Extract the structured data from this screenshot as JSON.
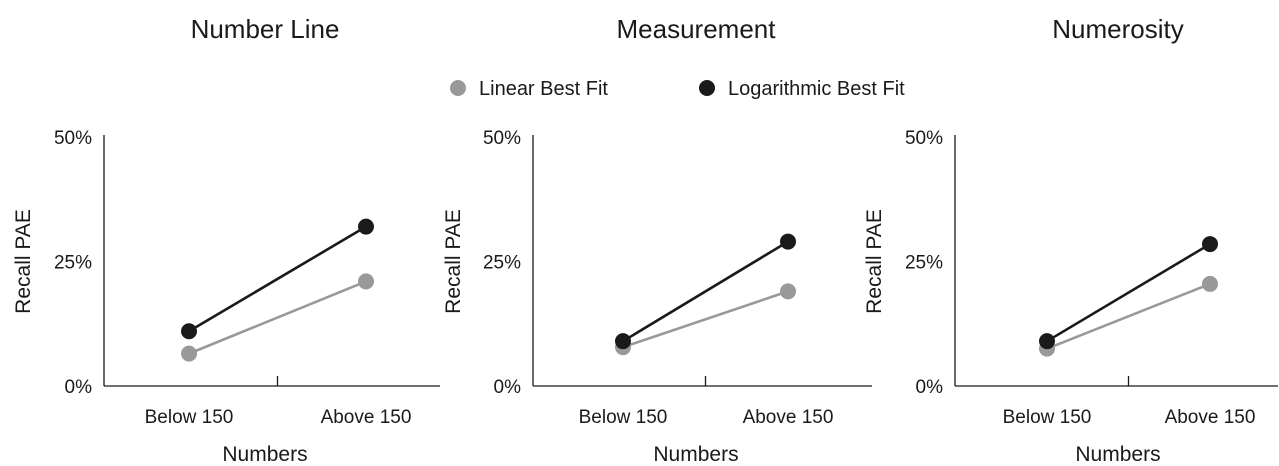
{
  "legend": {
    "items": [
      {
        "label": "Linear Best Fit",
        "color": "#999999"
      },
      {
        "label": "Logarithmic Best Fit",
        "color": "#1a1a1a"
      }
    ]
  },
  "chart_data": [
    {
      "type": "line",
      "title": "Number Line",
      "xlabel": "Numbers",
      "ylabel": "Recall PAE",
      "categories": [
        "Below 150",
        "Above 150"
      ],
      "ylim": [
        0,
        50
      ],
      "yticks": [
        "0%",
        "25%",
        "50%"
      ],
      "ytick_values": [
        0,
        25,
        50
      ],
      "series": [
        {
          "name": "Linear Best Fit",
          "values": [
            6.5,
            21
          ],
          "color": "#999999"
        },
        {
          "name": "Logarithmic Best Fit",
          "values": [
            11,
            32
          ],
          "color": "#1a1a1a"
        }
      ]
    },
    {
      "type": "line",
      "title": "Measurement",
      "xlabel": "Numbers",
      "ylabel": "Recall PAE",
      "categories": [
        "Below 150",
        "Above 150"
      ],
      "ylim": [
        0,
        50
      ],
      "yticks": [
        "0%",
        "25%",
        "50%"
      ],
      "ytick_values": [
        0,
        25,
        50
      ],
      "series": [
        {
          "name": "Linear Best Fit",
          "values": [
            7.8,
            19
          ],
          "color": "#999999"
        },
        {
          "name": "Logarithmic Best Fit",
          "values": [
            9,
            29
          ],
          "color": "#1a1a1a"
        }
      ]
    },
    {
      "type": "line",
      "title": "Numerosity",
      "xlabel": "Numbers",
      "ylabel": "Recall PAE",
      "categories": [
        "Below 150",
        "Above 150"
      ],
      "ylim": [
        0,
        50
      ],
      "yticks": [
        "0%",
        "25%",
        "50%"
      ],
      "ytick_values": [
        0,
        25,
        50
      ],
      "series": [
        {
          "name": "Linear Best Fit",
          "values": [
            7.5,
            20.5
          ],
          "color": "#999999"
        },
        {
          "name": "Logarithmic Best Fit",
          "values": [
            9,
            28.5
          ],
          "color": "#1a1a1a"
        }
      ]
    }
  ]
}
